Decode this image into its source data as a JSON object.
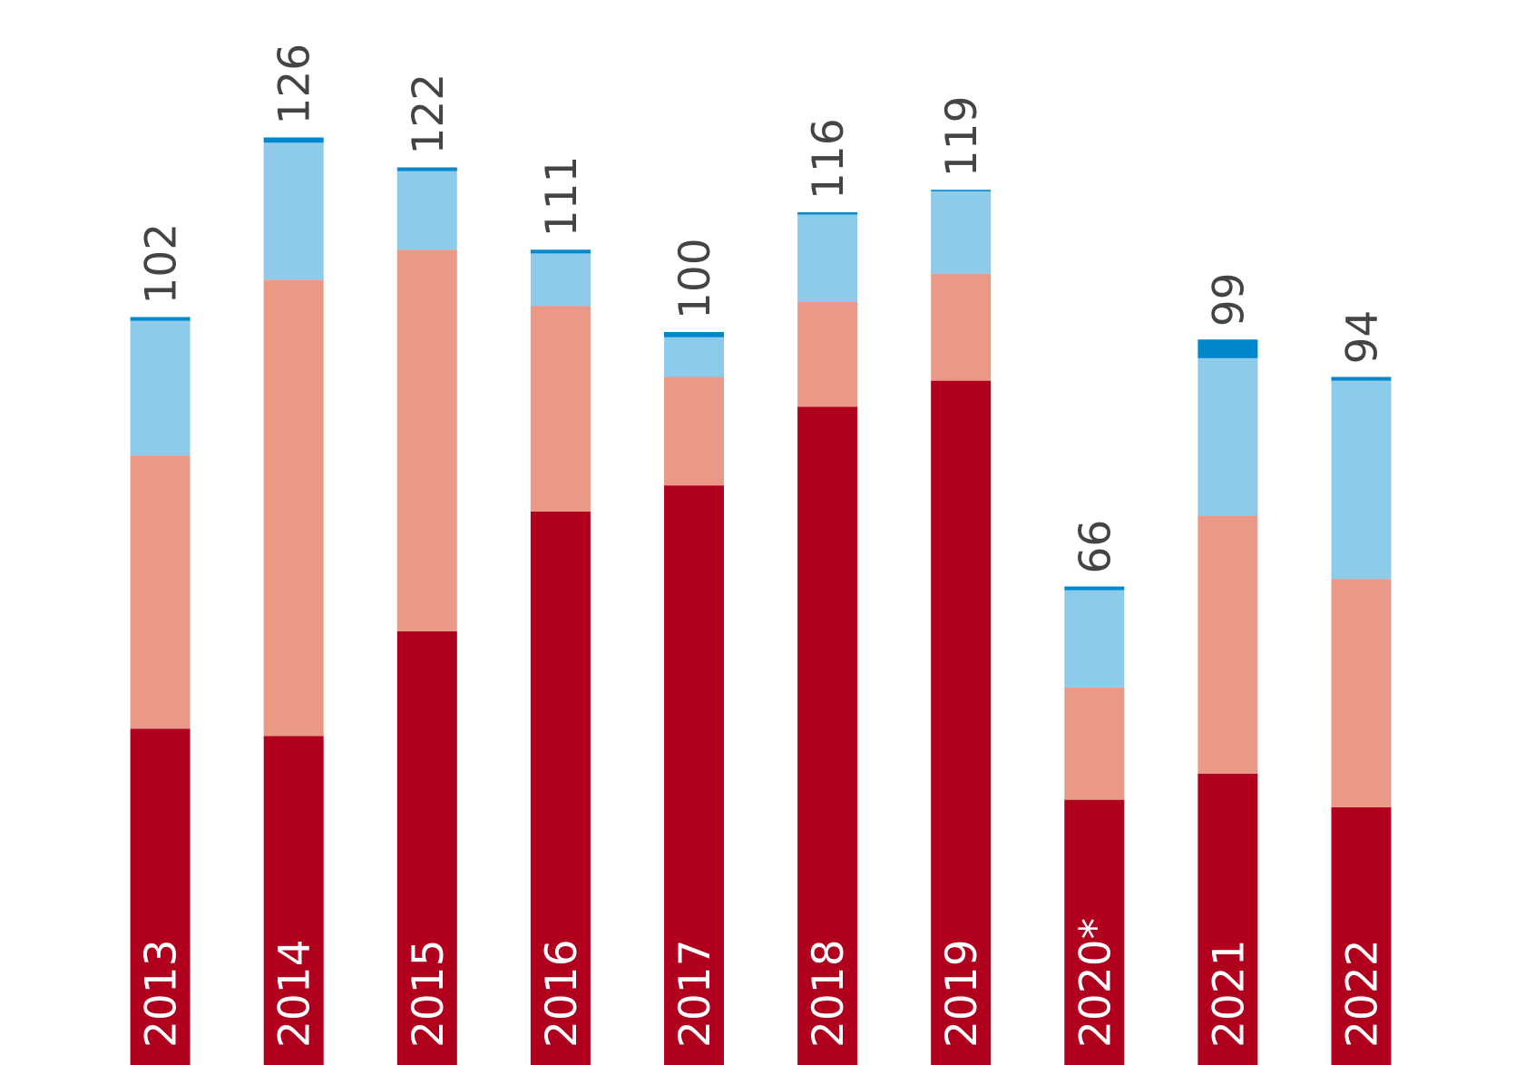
{
  "chart_data": {
    "type": "stacked_bar",
    "categories": [
      "2013",
      "2014",
      "2015",
      "2016",
      "2017",
      "2018",
      "2019",
      "2020*",
      "2021",
      "2022"
    ],
    "series": [
      {
        "color": "#b0001e",
        "values": [
          47,
          46,
          60,
          76,
          79.5,
          90,
          93.5,
          37.5,
          41,
          36.5
        ]
      },
      {
        "color": "#e99986",
        "values": [
          36.5,
          61,
          51,
          27.5,
          14.5,
          14,
          14.3,
          15,
          34.5,
          30.5
        ]
      },
      {
        "color": "#8ecbea",
        "values": [
          18,
          18.3,
          10.5,
          7,
          5.3,
          11.7,
          11,
          13,
          21,
          26.5
        ]
      },
      {
        "color": "#0088cc",
        "values": [
          0.5,
          0.7,
          0.5,
          0.5,
          0.7,
          0.3,
          0.2,
          0.5,
          2.5,
          0.5
        ]
      }
    ],
    "totals": [
      102,
      126,
      122,
      111,
      100,
      116,
      119,
      66,
      99,
      94
    ],
    "ylim": [
      0,
      144
    ]
  }
}
